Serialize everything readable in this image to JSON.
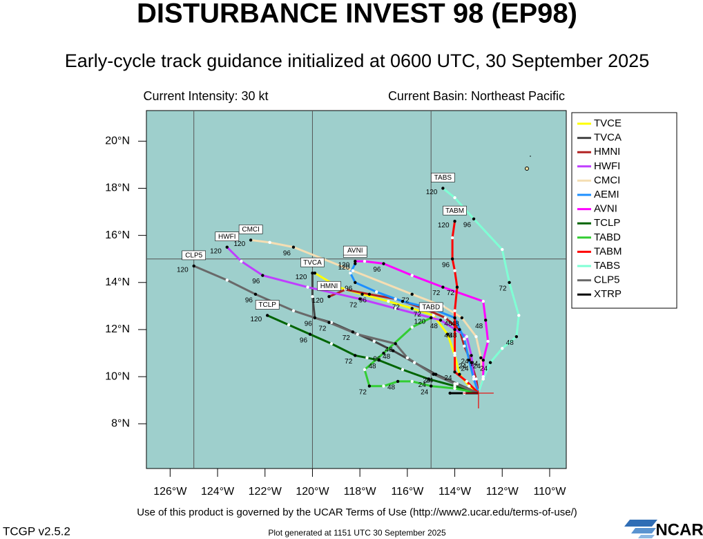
{
  "chart_data": {
    "type": "track",
    "title": "DISTURBANCE INVEST 98 (EP98)",
    "subtitle": "Early-cycle track guidance initialized at 0600 UTC, 30 September 2025",
    "current_intensity": "Current Intensity: 30 kt",
    "current_basin": "Current Basin: Northeast Pacific",
    "terms": "Use of this product is governed by the UCAR Terms of Use (http://www2.ucar.edu/terms-of-use/)",
    "version": "TCGP v2.5.2",
    "plot_generated": "Plot generated at 1151 UTC   30 September 2025",
    "logo": "NCAR",
    "xlim": [
      -127.0,
      -109.3
    ],
    "ylim": [
      6.1,
      21.3
    ],
    "xticks": [
      {
        "value": -126,
        "label": "126°W"
      },
      {
        "value": -124,
        "label": "124°W"
      },
      {
        "value": -122,
        "label": "122°W"
      },
      {
        "value": -120,
        "label": "120°W"
      },
      {
        "value": -118,
        "label": "118°W"
      },
      {
        "value": -116,
        "label": "116°W"
      },
      {
        "value": -114,
        "label": "114°W"
      },
      {
        "value": -112,
        "label": "112°W"
      },
      {
        "value": -110,
        "label": "110°W"
      }
    ],
    "yticks": [
      {
        "value": 8,
        "label": "8°N"
      },
      {
        "value": 10,
        "label": "10°N"
      },
      {
        "value": 12,
        "label": "12°N"
      },
      {
        "value": 14,
        "label": "14°N"
      },
      {
        "value": 16,
        "label": "16°N"
      },
      {
        "value": 18,
        "label": "18°N"
      },
      {
        "value": 20,
        "label": "20°N"
      }
    ],
    "grid_lon": [
      -125,
      -120,
      -115
    ],
    "grid_lat": [
      15
    ],
    "hours": [
      0,
      12,
      24,
      36,
      48,
      60,
      72,
      84,
      96,
      108,
      120
    ],
    "labeled_hours": [
      24,
      48,
      72,
      96,
      120
    ],
    "series": [
      {
        "name": "TVCE",
        "color": "#ffff00",
        "boxed": false,
        "lon": [
          -113.0,
          -113.4,
          -113.8,
          -114.0,
          -114.3,
          -114.9,
          -115.8,
          -116.8,
          -117.9,
          -118.9,
          -119.9
        ],
        "lat": [
          9.3,
          9.6,
          10.1,
          10.9,
          11.8,
          12.6,
          12.9,
          13.2,
          13.5,
          13.8,
          14.4
        ]
      },
      {
        "name": "TVCA",
        "color": "#444444",
        "boxed": true,
        "lon": [
          -113.0,
          -113.9,
          -114.8,
          -115.7,
          -116.6,
          -117.4,
          -118.3,
          -119.2,
          -119.9,
          -120.0,
          -120.0
        ],
        "lat": [
          9.3,
          9.7,
          10.1,
          10.6,
          11.1,
          11.5,
          11.9,
          12.3,
          12.5,
          13.4,
          14.4
        ]
      },
      {
        "name": "HMNI",
        "color": "#b22222",
        "boxed": true,
        "lon": [
          -113.0,
          -113.1,
          -113.3,
          -113.6,
          -113.8,
          -114.4,
          -115.3,
          -116.5,
          -117.6,
          -118.6,
          -119.3
        ],
        "lat": [
          9.3,
          9.9,
          10.6,
          11.3,
          12.0,
          12.5,
          12.9,
          13.3,
          13.5,
          13.7,
          13.4
        ]
      },
      {
        "name": "HWFI",
        "color": "#bf3eff",
        "boxed": true,
        "lon": [
          -113.0,
          -113.2,
          -113.3,
          -113.5,
          -114.6,
          -116.5,
          -118.0,
          -120.2,
          -122.1,
          -123.0,
          -123.6
        ],
        "lat": [
          9.3,
          10.0,
          10.9,
          11.7,
          12.4,
          12.9,
          13.3,
          13.8,
          14.3,
          14.9,
          15.5
        ]
      },
      {
        "name": "CMCI",
        "color": "#f5deb3",
        "boxed": true,
        "lon": [
          -113.0,
          -112.8,
          -112.9,
          -113.1,
          -113.7,
          -114.5,
          -115.8,
          -118.3,
          -120.8,
          -121.8,
          -122.6
        ],
        "lat": [
          9.3,
          10.0,
          10.8,
          11.7,
          12.5,
          13.0,
          13.5,
          14.5,
          15.5,
          15.7,
          15.8
        ]
      },
      {
        "name": "AEMI",
        "color": "#1e90ff",
        "boxed": true,
        "lon": [
          -113.0,
          -113.2,
          -113.4,
          -113.6,
          -114.0,
          -115.0,
          -116.2,
          -117.3,
          -118.2,
          -118.4,
          -118.2
        ],
        "lat": [
          9.3,
          9.9,
          10.7,
          11.6,
          12.5,
          12.9,
          13.2,
          13.6,
          14.0,
          14.4,
          14.8
        ]
      },
      {
        "name": "AVNI",
        "color": "#ff00ff",
        "boxed": true,
        "lon": [
          -113.0,
          -112.8,
          -112.8,
          -112.6,
          -112.7,
          -112.8,
          -114.5,
          -115.8,
          -117.0,
          -117.8,
          -118.2
        ],
        "lat": [
          9.3,
          9.9,
          10.7,
          11.5,
          12.4,
          13.2,
          13.8,
          14.3,
          14.8,
          14.9,
          14.9
        ]
      },
      {
        "name": "TCLP",
        "color": "#006400",
        "boxed": true,
        "lon": [
          -113.0,
          -114.0,
          -115.1,
          -116.2,
          -117.2,
          -117.7,
          -118.2,
          -119.2,
          -120.1,
          -121.0,
          -121.9
        ],
        "lat": [
          9.3,
          9.6,
          9.9,
          10.3,
          10.7,
          10.8,
          10.9,
          11.4,
          11.8,
          12.2,
          12.6
        ]
      },
      {
        "name": "TABD",
        "color": "#32cd32",
        "boxed": true,
        "lon": [
          -113.0,
          -114.0,
          -115.0,
          -115.8,
          -116.4,
          -117.0,
          -117.6,
          -117.8,
          -117.0,
          -115.8,
          -115.0
        ],
        "lat": [
          9.3,
          9.5,
          9.6,
          9.8,
          9.8,
          9.6,
          9.6,
          10.3,
          11.0,
          12.1,
          12.5
        ]
      },
      {
        "name": "TABM",
        "color": "#ff0000",
        "boxed": true,
        "lon": [
          -113.0,
          -113.5,
          -114.0,
          -114.0,
          -114.0,
          -114.0,
          -113.9,
          -114.0,
          -114.1,
          -114.1,
          -114.0
        ],
        "lat": [
          9.3,
          9.8,
          10.2,
          11.0,
          12.0,
          12.8,
          13.8,
          14.5,
          15.0,
          15.9,
          16.6
        ]
      },
      {
        "name": "TABS",
        "color": "#7fffd4",
        "boxed": true,
        "lon": [
          -113.0,
          -112.8,
          -112.5,
          -112.0,
          -111.4,
          -111.3,
          -111.7,
          -112.0,
          -113.2,
          -114.0,
          -114.5
        ],
        "lat": [
          9.3,
          9.9,
          10.6,
          11.2,
          11.7,
          12.6,
          14.0,
          15.4,
          16.7,
          17.6,
          18.0
        ]
      },
      {
        "name": "CLP5",
        "color": "#696969",
        "boxed": true,
        "lon": [
          -113.0,
          -114.0,
          -114.9,
          -116.0,
          -116.5,
          -118.1,
          -119.3,
          -120.8,
          -122.4,
          -123.6,
          -125.0
        ],
        "lat": [
          9.3,
          9.7,
          10.1,
          10.8,
          11.4,
          11.8,
          12.3,
          12.8,
          13.5,
          14.1,
          14.7
        ]
      },
      {
        "name": "XTRP",
        "color": "#000000",
        "boxed": false,
        "lon": [
          -113.0,
          -113.6,
          -114.2
        ],
        "lat": [
          9.3,
          9.3,
          9.3
        ]
      }
    ]
  }
}
